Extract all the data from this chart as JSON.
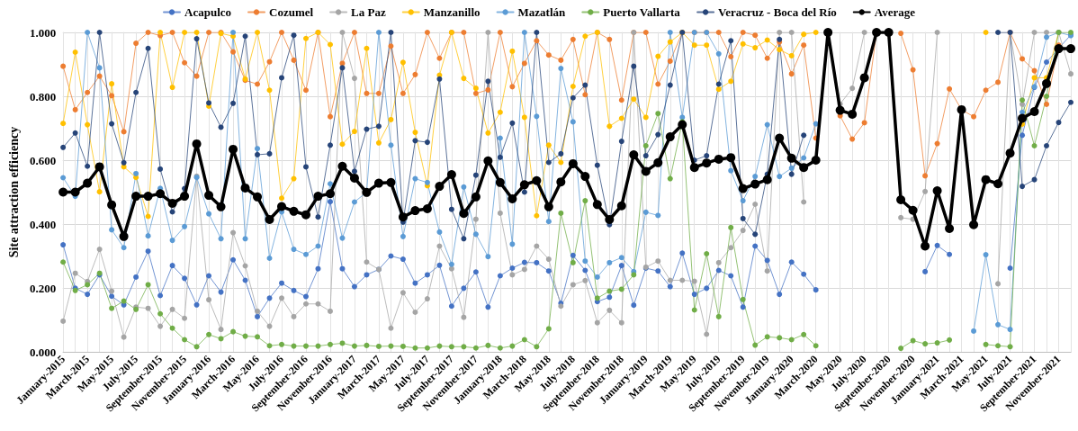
{
  "chart_data": {
    "type": "line",
    "ylabel": "Site attraction efficiency",
    "categories": [
      "January-2015",
      null,
      "March-2015",
      null,
      "May-2015",
      null,
      "July-2015",
      null,
      "September-2015",
      null,
      "November-2015",
      null,
      "January-2016",
      null,
      "March-2016",
      null,
      "May-2016",
      null,
      "July-2016",
      null,
      "September-2016",
      null,
      "November-2016",
      null,
      "January-2017",
      null,
      "March-2017",
      null,
      "May-2017",
      null,
      "July-2017",
      null,
      "September-2017",
      null,
      "November-2017",
      null,
      "January-2018",
      null,
      "March-2018",
      null,
      "May-2018",
      null,
      "July-2018",
      null,
      "September-2018",
      null,
      "November-2018",
      null,
      "January-2019",
      null,
      "March-2019",
      null,
      "May-2019",
      null,
      "July-2019",
      null,
      "September-2019",
      null,
      "November-2019",
      null,
      "January-2020",
      null,
      "March-2020",
      null,
      "May-2020",
      null,
      "July-2020",
      null,
      "September-2020",
      null,
      "November-2020",
      null,
      "January-2021",
      null,
      "March-2021",
      null,
      "May-2021",
      null,
      "July-2021",
      null,
      "September-2021",
      null,
      "November-2021",
      null
    ],
    "series": [
      {
        "name": "Acapulco",
        "color": "#4472c4",
        "values": [
          0.335,
          0.199,
          0.18,
          0.241,
          0.174,
          0.147,
          0.234,
          0.315,
          0.176,
          0.27,
          0.23,
          0.147,
          0.238,
          0.187,
          0.288,
          0.224,
          0.11,
          0.168,
          0.215,
          0.192,
          0.173,
          0.26,
          0.47,
          0.26,
          0.204,
          0.241,
          0.258,
          0.3,
          0.29,
          0.215,
          0.241,
          0.271,
          0.143,
          0.199,
          0.25,
          0.14,
          0.238,
          0.262,
          0.28,
          0.279,
          0.253,
          0.152,
          0.302,
          0.255,
          0.157,
          0.171,
          0.27,
          0.146,
          0.262,
          0.253,
          0.204,
          0.309,
          0.18,
          0.199,
          0.255,
          0.238,
          0.14,
          0.331,
          0.286,
          0.18,
          0.281,
          0.243,
          0.194,
          null,
          null,
          null,
          null,
          null,
          null,
          null,
          null,
          0.251,
          0.333,
          0.305,
          null,
          null,
          null,
          null,
          0.262,
          0.678,
          0.828,
          0.907,
          0.95,
          0.992
        ]
      },
      {
        "name": "Cozumel",
        "color": "#ed7d31",
        "values": [
          0.894,
          0.758,
          0.812,
          0.863,
          0.802,
          0.689,
          0.966,
          1.0,
          0.99,
          1.0,
          0.905,
          0.863,
          1.0,
          1.0,
          0.939,
          0.85,
          0.838,
          0.908,
          1.0,
          0.913,
          0.819,
          1.0,
          0.736,
          0.903,
          1.0,
          0.809,
          0.809,
          0.957,
          0.809,
          0.868,
          1.0,
          0.919,
          1.0,
          1.0,
          0.809,
          0.82,
          1.0,
          0.83,
          0.903,
          0.974,
          0.929,
          0.913,
          0.978,
          0.805,
          1.0,
          0.978,
          0.788,
          1.0,
          1.0,
          0.838,
          0.91,
          1.0,
          1.0,
          1.0,
          1.0,
          0.924,
          1.0,
          0.991,
          0.919,
          0.97,
          0.87,
          0.96,
          0.669,
          null,
          0.739,
          0.666,
          0.717,
          1.0,
          null,
          0.997,
          0.883,
          0.551,
          0.652,
          0.823,
          0.758,
          0.736,
          0.819,
          0.844,
          1.0,
          0.917,
          0.88,
          0.775,
          0.96,
          null
        ]
      },
      {
        "name": "La Paz",
        "color": "#a5a5a5",
        "values": [
          0.096,
          0.246,
          0.22,
          0.321,
          0.19,
          0.046,
          0.14,
          0.136,
          0.08,
          0.133,
          0.105,
          0.55,
          0.163,
          0.07,
          0.373,
          0.269,
          0.127,
          0.08,
          0.168,
          0.11,
          0.15,
          0.15,
          0.127,
          1.0,
          0.856,
          0.281,
          0.258,
          0.074,
          0.185,
          0.124,
          0.166,
          0.331,
          0.26,
          0.108,
          0.415,
          1.0,
          0.434,
          0.241,
          0.258,
          0.331,
          0.29,
          0.143,
          0.21,
          0.223,
          0.091,
          0.13,
          0.091,
          1.0,
          0.265,
          0.284,
          0.224,
          0.224,
          0.221,
          0.055,
          0.279,
          0.326,
          0.38,
          0.462,
          0.253,
          1.0,
          1.0,
          0.469,
          null,
          1.0,
          0.776,
          0.825,
          1.0,
          null,
          null,
          0.42,
          0.415,
          0.502,
          1.0,
          null,
          null,
          null,
          null,
          0.213,
          1.0,
          0.775,
          1.0,
          1.0,
          1.0,
          0.87
        ]
      },
      {
        "name": "Manzanillo",
        "color": "#ffc000",
        "values": [
          0.715,
          0.938,
          0.711,
          0.501,
          0.839,
          0.579,
          0.546,
          0.424,
          1.0,
          0.828,
          1.0,
          1.0,
          0.769,
          0.997,
          0.988,
          0.854,
          1.0,
          0.819,
          0.481,
          0.542,
          0.981,
          1.0,
          0.962,
          0.65,
          0.69,
          0.95,
          0.654,
          0.727,
          0.906,
          0.687,
          0.52,
          0.866,
          1.0,
          0.856,
          0.825,
          0.685,
          0.75,
          0.941,
          0.734,
          0.426,
          0.647,
          0.593,
          0.831,
          0.988,
          1.0,
          0.706,
          0.731,
          0.791,
          0.734,
          0.925,
          0.97,
          1.0,
          0.96,
          0.96,
          0.822,
          0.847,
          0.964,
          0.952,
          0.976,
          0.946,
          0.927,
          0.994,
          1.0,
          null,
          null,
          null,
          null,
          null,
          null,
          null,
          null,
          null,
          null,
          null,
          null,
          null,
          1.0,
          null,
          null,
          0.713,
          0.858,
          0.858,
          1.0,
          null
        ]
      },
      {
        "name": "Mazatlán",
        "color": "#5b9bd5",
        "values": [
          0.545,
          0.487,
          1.0,
          0.889,
          0.382,
          0.326,
          0.558,
          0.363,
          0.512,
          0.349,
          0.392,
          0.546,
          0.432,
          0.354,
          1.0,
          0.354,
          0.636,
          0.293,
          0.438,
          0.321,
          0.305,
          0.331,
          0.526,
          0.356,
          0.469,
          0.5,
          1.0,
          0.647,
          0.361,
          0.542,
          0.53,
          0.375,
          0.274,
          0.516,
          0.368,
          0.298,
          0.669,
          0.337,
          1.0,
          0.737,
          0.408,
          0.887,
          0.72,
          0.284,
          0.234,
          0.279,
          0.295,
          0.251,
          0.437,
          0.427,
          1.0,
          0.734,
          1.0,
          1.0,
          0.933,
          0.567,
          0.473,
          0.549,
          0.711,
          0.549,
          0.575,
          0.607,
          0.714,
          null,
          null,
          null,
          null,
          null,
          null,
          null,
          null,
          null,
          null,
          null,
          null,
          0.065,
          0.304,
          0.085,
          0.07,
          0.75,
          0.83,
          0.985,
          1.0,
          0.99
        ]
      },
      {
        "name": "Puerto Vallarta",
        "color": "#70ad47",
        "values": [
          0.281,
          0.192,
          0.21,
          0.246,
          0.136,
          0.159,
          0.133,
          0.21,
          0.119,
          0.074,
          0.038,
          0.016,
          0.054,
          0.041,
          0.063,
          0.049,
          0.047,
          0.019,
          0.023,
          0.018,
          0.018,
          0.018,
          0.023,
          0.027,
          0.018,
          0.02,
          0.017,
          0.018,
          0.017,
          0.012,
          0.012,
          0.018,
          0.016,
          0.016,
          0.012,
          0.02,
          0.012,
          0.018,
          0.038,
          0.016,
          0.072,
          0.434,
          0.279,
          0.473,
          0.168,
          0.19,
          0.196,
          0.241,
          0.645,
          0.746,
          0.542,
          0.72,
          0.131,
          0.307,
          0.11,
          0.389,
          0.164,
          0.021,
          0.047,
          0.044,
          0.038,
          0.054,
          0.019,
          null,
          null,
          null,
          null,
          null,
          null,
          0.011,
          0.035,
          0.025,
          0.028,
          0.037,
          null,
          null,
          0.023,
          0.019,
          0.016,
          0.788,
          0.645,
          0.8,
          1.0,
          1.0
        ]
      },
      {
        "name": "Veracruz - Boca del Río",
        "color": "#264478",
        "values": [
          0.64,
          0.685,
          0.581,
          1.0,
          0.714,
          0.592,
          0.812,
          0.95,
          0.572,
          0.438,
          0.511,
          0.98,
          0.779,
          0.703,
          0.778,
          0.988,
          0.617,
          0.62,
          0.858,
          0.991,
          0.579,
          0.422,
          0.647,
          0.889,
          0.565,
          0.697,
          0.706,
          1.0,
          0.406,
          0.661,
          0.656,
          0.854,
          0.446,
          0.354,
          0.553,
          0.847,
          0.609,
          0.716,
          0.5,
          1.0,
          0.593,
          0.62,
          0.795,
          0.835,
          0.584,
          0.398,
          0.659,
          0.894,
          0.614,
          0.68,
          0.835,
          1.0,
          0.6,
          0.614,
          0.838,
          0.974,
          0.417,
          0.368,
          0.556,
          0.978,
          0.556,
          0.678,
          null,
          null,
          null,
          null,
          null,
          null,
          null,
          null,
          null,
          null,
          null,
          null,
          null,
          null,
          null,
          1.0,
          1.0,
          0.518,
          0.539,
          0.645,
          0.718,
          0.781
        ]
      },
      {
        "name": "Average",
        "color": "#000000",
        "values": [
          0.5,
          0.5,
          0.528,
          0.579,
          0.46,
          0.361,
          0.487,
          0.487,
          0.495,
          0.465,
          0.487,
          0.651,
          0.49,
          0.454,
          0.634,
          0.513,
          0.485,
          0.414,
          0.455,
          0.44,
          0.429,
          0.487,
          0.495,
          0.581,
          0.544,
          0.499,
          0.528,
          0.53,
          0.422,
          0.442,
          0.448,
          0.518,
          0.555,
          0.433,
          0.485,
          0.598,
          0.53,
          0.479,
          0.523,
          0.536,
          0.454,
          0.532,
          0.589,
          0.549,
          0.461,
          0.414,
          0.457,
          0.617,
          0.565,
          0.592,
          0.673,
          0.711,
          0.577,
          0.591,
          0.603,
          0.608,
          0.511,
          0.525,
          0.539,
          0.669,
          0.606,
          0.577,
          0.6,
          1.0,
          0.756,
          0.744,
          0.858,
          1.0,
          1.0,
          0.476,
          0.443,
          0.331,
          0.504,
          0.386,
          0.758,
          0.398,
          0.539,
          0.526,
          0.622,
          0.731,
          0.752,
          0.84,
          0.949,
          0.949
        ]
      }
    ],
    "ylim": [
      0,
      1
    ],
    "yticks": [
      {
        "value": 0,
        "label": "0.000"
      },
      {
        "value": 0.2,
        "label": "0.200"
      },
      {
        "value": 0.4,
        "label": "0.400"
      },
      {
        "value": 0.6,
        "label": "0.600"
      },
      {
        "value": 0.8,
        "label": "0.800"
      },
      {
        "value": 1,
        "label": "1.000"
      }
    ],
    "grid": true,
    "legend": "top",
    "marker": "circle",
    "line_style": "solid"
  }
}
